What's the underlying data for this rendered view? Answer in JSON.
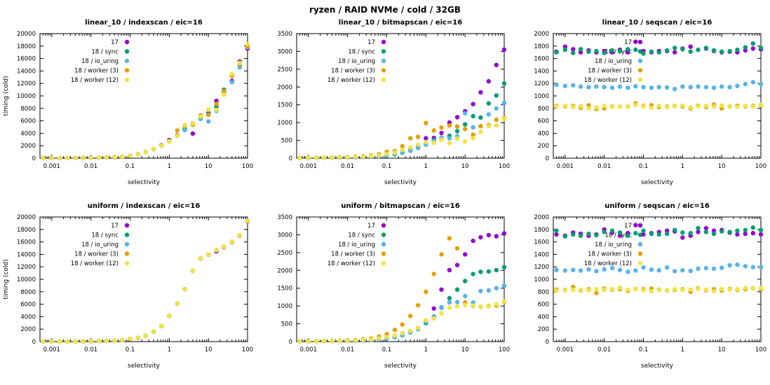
{
  "chart_data": {
    "type": "scatter",
    "title": "ryzen / RAID NVMe / cold / 32GB",
    "layout": {
      "rows": 2,
      "cols": 3,
      "legend_position": "top-left-inside",
      "grid": false
    },
    "xscale": "log",
    "xlabel": "selectivity",
    "ylabel": "timing (cold)",
    "xlim": [
      0.0005,
      100
    ],
    "xticks": [
      0.001,
      0.01,
      0.1,
      1,
      10,
      100
    ],
    "xtick_labels": [
      "0.001",
      "0.01",
      "0.1",
      "1",
      "10",
      "100"
    ],
    "series_names": [
      "17",
      "18 / sync",
      "18 / io_uring",
      "18 / worker (3)",
      "18 / worker (12)"
    ],
    "series_colors": [
      "#9400d3",
      "#009e73",
      "#56b4e9",
      "#e69f00",
      "#f0e442"
    ],
    "x": [
      0.0006,
      0.001,
      0.0016,
      0.0025,
      0.004,
      0.0063,
      0.01,
      0.016,
      0.025,
      0.04,
      0.063,
      0.1,
      0.16,
      0.25,
      0.4,
      0.63,
      1,
      1.6,
      2.5,
      4,
      6.3,
      10,
      16,
      25,
      40,
      63,
      100
    ],
    "charts": [
      {
        "title": "linear_10 / indexscan / eic=16",
        "ylim": [
          0,
          20000
        ],
        "ytick_step": 2000,
        "show_ylabel": true,
        "series": [
          [
            25,
            30,
            35,
            40,
            50,
            60,
            75,
            95,
            120,
            160,
            230,
            400,
            640,
            990,
            1450,
            2100,
            2900,
            3700,
            4550,
            3950,
            6600,
            7250,
            9200,
            10600,
            12400,
            15500,
            17600
          ],
          [
            22,
            28,
            33,
            42,
            52,
            62,
            78,
            98,
            125,
            165,
            240,
            410,
            660,
            1010,
            1480,
            2050,
            2750,
            3650,
            4700,
            5600,
            6500,
            7100,
            8300,
            11000,
            13400,
            14900,
            18100
          ],
          [
            24,
            29,
            34,
            41,
            51,
            61,
            76,
            96,
            122,
            162,
            235,
            405,
            650,
            1000,
            1460,
            2020,
            2700,
            3600,
            4500,
            5450,
            6300,
            5900,
            7600,
            10500,
            12200,
            14600,
            17800
          ],
          [
            23,
            28,
            34,
            40,
            50,
            60,
            75,
            95,
            121,
            160,
            232,
            400,
            645,
            995,
            1455,
            2030,
            2720,
            4450,
            5200,
            5350,
            6900,
            6950,
            8700,
            10800,
            13200,
            15100,
            17900
          ],
          [
            24,
            29,
            34,
            41,
            50,
            61,
            76,
            96,
            122,
            161,
            233,
            402,
            648,
            1000,
            1460,
            2040,
            2730,
            3620,
            5300,
            5600,
            6700,
            7800,
            7750,
            10200,
            13500,
            15300,
            18300
          ]
        ]
      },
      {
        "title": "linear_10 / bitmapscan / eic=16",
        "ylim": [
          0,
          3500
        ],
        "ytick_step": 500,
        "show_ylabel": false,
        "series": [
          [
            5,
            8,
            10,
            12,
            15,
            18,
            22,
            28,
            35,
            45,
            60,
            85,
            120,
            170,
            240,
            320,
            560,
            570,
            710,
            1000,
            1150,
            1320,
            1520,
            1850,
            2160,
            2620,
            3050
          ],
          [
            5,
            7,
            9,
            11,
            14,
            17,
            21,
            26,
            33,
            42,
            55,
            75,
            105,
            150,
            210,
            290,
            420,
            520,
            540,
            630,
            760,
            950,
            1180,
            1140,
            1540,
            1760,
            2100
          ],
          [
            5,
            7,
            9,
            11,
            14,
            17,
            21,
            26,
            33,
            42,
            56,
            76,
            108,
            155,
            215,
            295,
            380,
            480,
            580,
            560,
            620,
            1260,
            870,
            900,
            1230,
            1400,
            1550
          ],
          [
            6,
            9,
            12,
            15,
            19,
            24,
            30,
            40,
            55,
            75,
            110,
            180,
            200,
            340,
            560,
            600,
            990,
            780,
            860,
            920,
            890,
            820,
            660,
            900,
            930,
            1080,
            1120
          ],
          [
            5,
            8,
            10,
            13,
            16,
            20,
            25,
            32,
            42,
            58,
            80,
            120,
            160,
            230,
            300,
            380,
            450,
            430,
            520,
            420,
            550,
            470,
            560,
            740,
            900,
            920,
            1100
          ]
        ]
      },
      {
        "title": "linear_10 / seqscan / eic=16",
        "ylim": [
          0,
          2000
        ],
        "ytick_step": 200,
        "show_ylabel": false,
        "series": [
          [
            1710,
            1790,
            1750,
            1700,
            1730,
            1700,
            1720,
            1700,
            1740,
            1700,
            1870,
            1720,
            1700,
            1720,
            1720,
            1700,
            1760,
            1790,
            1740,
            1760,
            1720,
            1700,
            1710,
            1700,
            1730,
            1760,
            1750
          ],
          [
            1700,
            1740,
            1690,
            1750,
            1710,
            1720,
            1690,
            1730,
            1720,
            1750,
            1740,
            1680,
            1710,
            1700,
            1730,
            1770,
            1750,
            1710,
            1740,
            1770,
            1730,
            1710,
            1720,
            1740,
            1780,
            1840,
            1770
          ],
          [
            1180,
            1160,
            1170,
            1150,
            1140,
            1150,
            1140,
            1130,
            1150,
            1130,
            1155,
            1140,
            1130,
            1140,
            1135,
            1110,
            1150,
            1140,
            1150,
            1140,
            1130,
            1150,
            1140,
            1160,
            1190,
            1220,
            1190
          ],
          [
            840,
            830,
            840,
            810,
            850,
            790,
            800,
            830,
            830,
            830,
            880,
            840,
            850,
            820,
            830,
            840,
            830,
            800,
            840,
            820,
            860,
            800,
            830,
            840,
            830,
            840,
            850
          ],
          [
            830,
            840,
            825,
            835,
            800,
            815,
            840,
            825,
            830,
            835,
            855,
            830,
            810,
            840,
            820,
            835,
            845,
            815,
            830,
            840,
            830,
            845,
            835,
            825,
            840,
            830,
            860
          ]
        ]
      },
      {
        "title": "uniform / indexscan / eic=16",
        "ylim": [
          0,
          20000
        ],
        "ytick_step": 2000,
        "show_ylabel": true,
        "series": [
          [
            15,
            20,
            25,
            30,
            38,
            48,
            60,
            80,
            105,
            145,
            210,
            420,
            600,
            950,
            1600,
            2500,
            4150,
            6100,
            8400,
            11350,
            13350,
            13950,
            14500,
            15150,
            15950,
            17000,
            19300
          ],
          [
            16,
            21,
            26,
            31,
            39,
            49,
            62,
            82,
            107,
            147,
            212,
            425,
            605,
            955,
            1605,
            2510,
            4160,
            6110,
            8420,
            11380,
            13380,
            13980,
            14680,
            15220,
            16020,
            17060,
            19380
          ],
          [
            15,
            20,
            25,
            31,
            38,
            49,
            61,
            81,
            106,
            146,
            211,
            422,
            602,
            952,
            1600,
            2505,
            4155,
            6105,
            8410,
            11360,
            13360,
            13960,
            14660,
            15200,
            16000,
            17040,
            19360
          ],
          [
            16,
            20,
            26,
            30,
            39,
            48,
            61,
            81,
            106,
            146,
            211,
            423,
            603,
            953,
            1602,
            2508,
            4158,
            6108,
            8415,
            11370,
            13370,
            13970,
            14670,
            15210,
            16010,
            17050,
            19370
          ],
          [
            15,
            21,
            25,
            31,
            38,
            49,
            61,
            81,
            106,
            146,
            212,
            424,
            604,
            954,
            1603,
            2509,
            4159,
            6109,
            8416,
            11375,
            13375,
            13975,
            14675,
            15215,
            16015,
            17055,
            19375
          ]
        ]
      },
      {
        "title": "uniform / bitmapscan / eic=16",
        "ylim": [
          0,
          3500
        ],
        "ytick_step": 500,
        "show_ylabel": false,
        "series": [
          [
            5,
            8,
            10,
            12,
            15,
            18,
            22,
            28,
            36,
            48,
            65,
            90,
            130,
            190,
            280,
            380,
            570,
            930,
            1460,
            2010,
            2150,
            2450,
            2830,
            2930,
            2990,
            2960,
            3040
          ],
          [
            5,
            7,
            9,
            11,
            14,
            17,
            21,
            26,
            34,
            45,
            60,
            85,
            120,
            175,
            260,
            350,
            520,
            700,
            960,
            1220,
            1460,
            1700,
            1900,
            1960,
            1970,
            2010,
            2090
          ],
          [
            5,
            7,
            9,
            11,
            14,
            17,
            21,
            26,
            34,
            45,
            61,
            86,
            122,
            178,
            262,
            355,
            560,
            680,
            950,
            1100,
            1110,
            1280,
            1100,
            1420,
            1440,
            1500,
            1570
          ],
          [
            6,
            9,
            12,
            16,
            20,
            26,
            34,
            46,
            62,
            90,
            140,
            210,
            330,
            480,
            720,
            1020,
            1400,
            1900,
            2450,
            2900,
            2620,
            1100,
            1000,
            980,
            1000,
            1010,
            1120
          ],
          [
            5,
            8,
            10,
            13,
            16,
            20,
            26,
            34,
            45,
            62,
            88,
            125,
            170,
            240,
            300,
            380,
            600,
            650,
            800,
            950,
            990,
            1030,
            1010,
            970,
            990,
            1050,
            1130
          ]
        ]
      },
      {
        "title": "uniform / seqscan / eic=16",
        "ylim": [
          0,
          2000
        ],
        "ytick_step": 200,
        "show_ylabel": false,
        "series": [
          [
            1720,
            1700,
            1750,
            1730,
            1700,
            1720,
            1800,
            1750,
            1700,
            1740,
            1870,
            1720,
            1740,
            1760,
            1780,
            1770,
            1670,
            1700,
            1760,
            1820,
            1780,
            1790,
            1750,
            1720,
            1730,
            1740,
            1720
          ],
          [
            1780,
            1690,
            1720,
            1700,
            1730,
            1710,
            1760,
            1780,
            1750,
            1700,
            1740,
            1780,
            1730,
            1720,
            1730,
            1790,
            1750,
            1740,
            1820,
            1760,
            1730,
            1770,
            1760,
            1780,
            1790,
            1830,
            1790
          ],
          [
            1150,
            1140,
            1150,
            1140,
            1160,
            1130,
            1160,
            1180,
            1150,
            1120,
            1140,
            1190,
            1155,
            1145,
            1190,
            1130,
            1145,
            1135,
            1170,
            1180,
            1170,
            1185,
            1225,
            1235,
            1210,
            1195,
            1195
          ],
          [
            835,
            830,
            875,
            825,
            840,
            780,
            850,
            835,
            845,
            815,
            845,
            840,
            850,
            835,
            820,
            830,
            840,
            800,
            855,
            825,
            840,
            820,
            845,
            830,
            840,
            855,
            840
          ],
          [
            815,
            825,
            830,
            835,
            825,
            840,
            830,
            845,
            865,
            830,
            840,
            825,
            810,
            830,
            825,
            840,
            830,
            835,
            845,
            835,
            810,
            845,
            835,
            840,
            860,
            850,
            860
          ]
        ]
      }
    ]
  }
}
